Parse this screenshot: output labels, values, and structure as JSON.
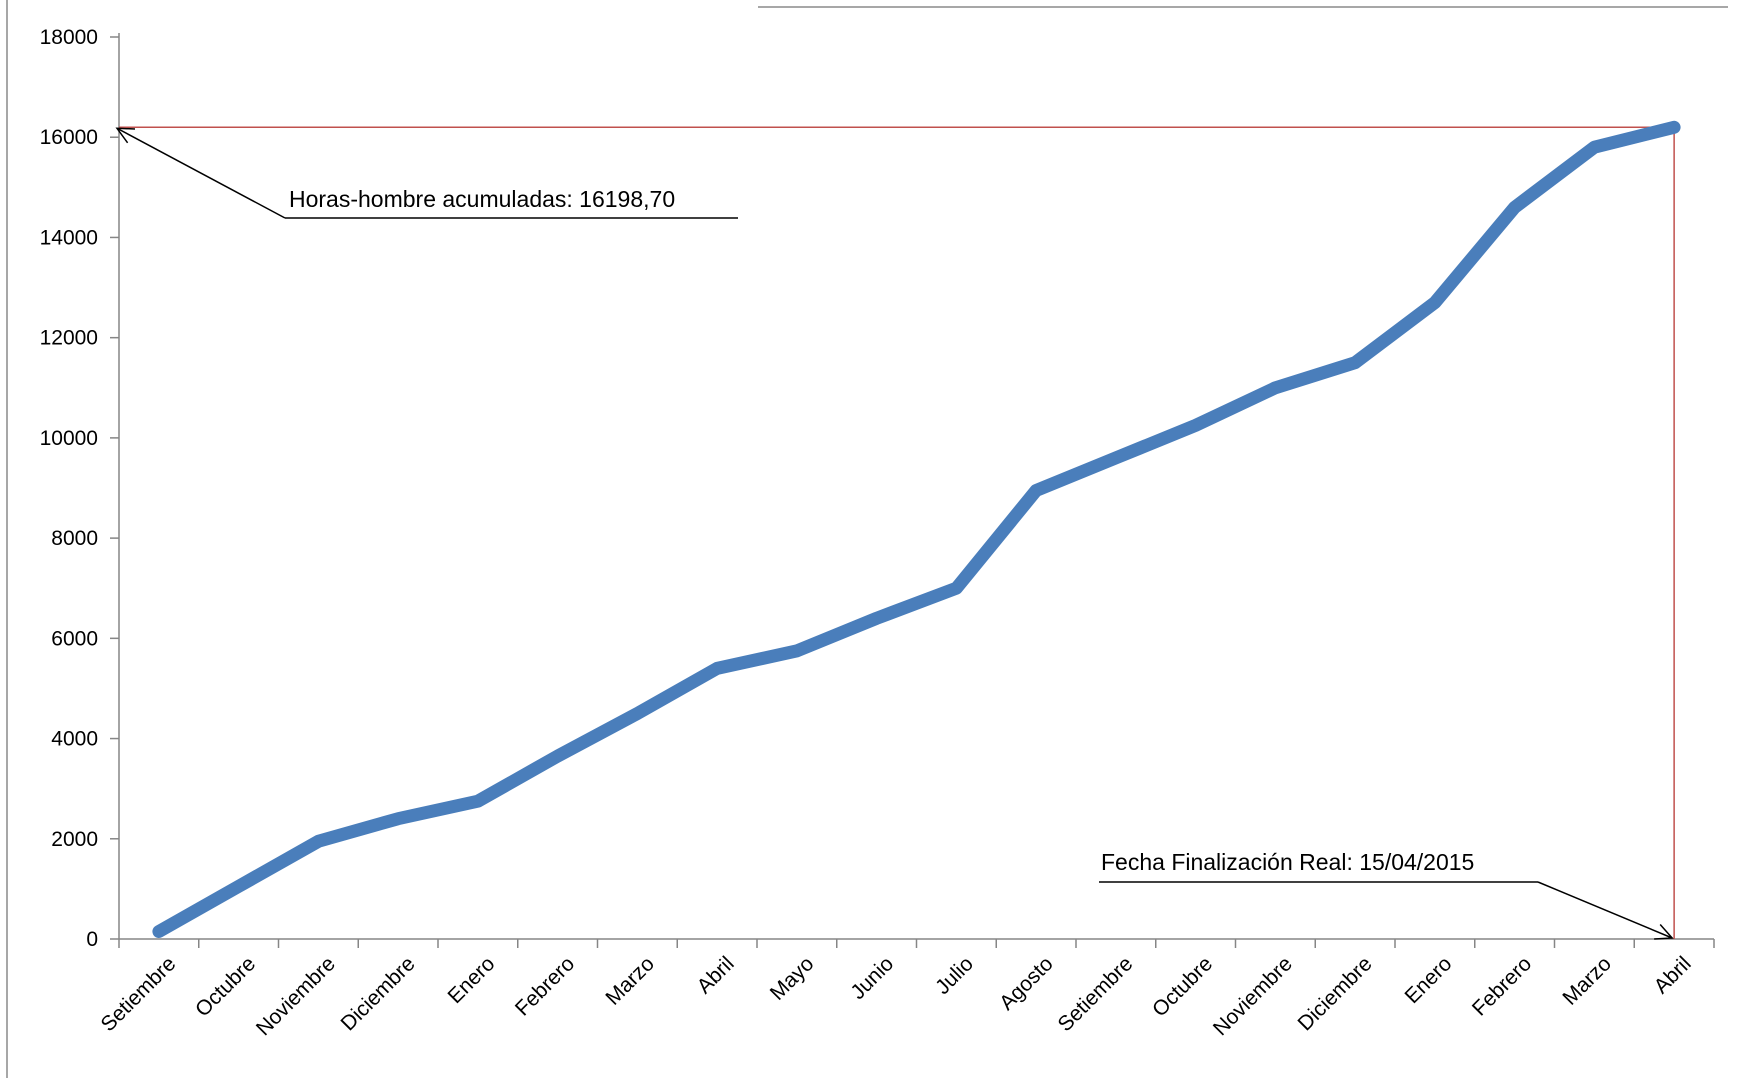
{
  "chart_data": {
    "type": "line",
    "categories": [
      "Setiembre",
      "Octubre",
      "Noviembre",
      "Diciembre",
      "Enero",
      "Febrero",
      "Marzo",
      "Abril",
      "Mayo",
      "Junio",
      "Julio",
      "Agosto",
      "Setiembre",
      "Octubre",
      "Noviembre",
      "Diciembre",
      "Enero",
      "Febrero",
      "Marzo",
      "Abril"
    ],
    "series": [
      {
        "values": [
          150,
          1050,
          1950,
          2400,
          2750,
          3650,
          4500,
          5400,
          5750,
          6400,
          7000,
          8950,
          9600,
          10250,
          11000,
          11500,
          12700,
          14600,
          15800,
          16199
        ]
      }
    ],
    "ylim": [
      0,
      18000
    ],
    "yticks": [
      0,
      2000,
      4000,
      6000,
      8000,
      10000,
      12000,
      14000,
      16000,
      18000
    ],
    "grid": false,
    "legend": "none",
    "series_color": "#4a7ebb",
    "reference_color": "#c0504d",
    "reference_value": 16198.7,
    "annotations": [
      {
        "id": "hours",
        "text": "Horas-hombre acumuladas: 16198,70"
      },
      {
        "id": "date",
        "text": "Fecha Finalización Real: 15/04/2015"
      }
    ]
  }
}
